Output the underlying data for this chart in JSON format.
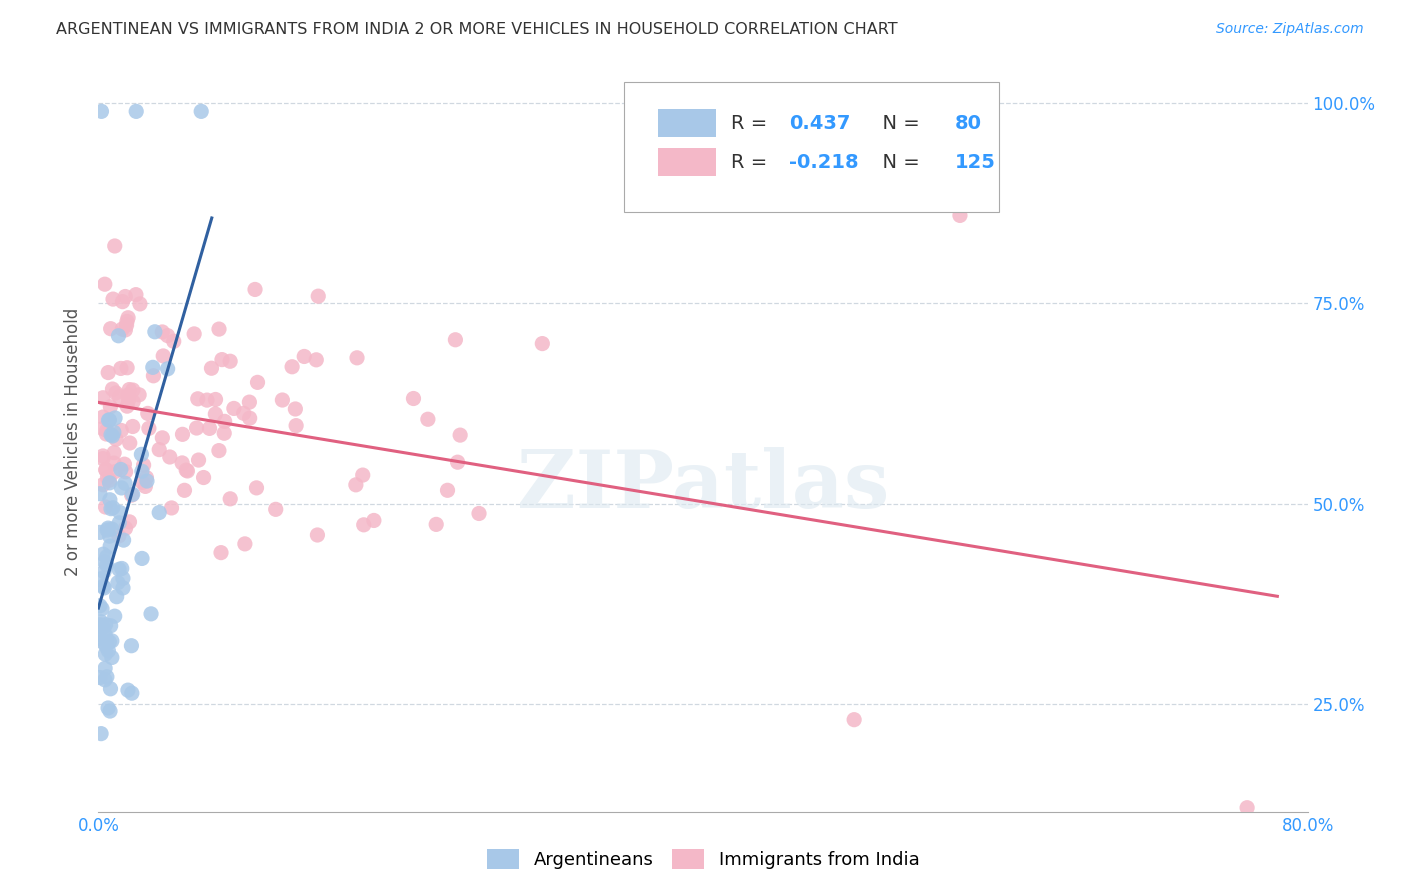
{
  "title": "ARGENTINEAN VS IMMIGRANTS FROM INDIA 2 OR MORE VEHICLES IN HOUSEHOLD CORRELATION CHART",
  "source": "Source: ZipAtlas.com",
  "ylabel_label": "2 or more Vehicles in Household",
  "legend_labels": [
    "Argentineans",
    "Immigrants from India"
  ],
  "r_blue": 0.437,
  "n_blue": 80,
  "r_pink": -0.218,
  "n_pink": 125,
  "blue_color": "#a8c8e8",
  "pink_color": "#f4b8c8",
  "blue_line_color": "#3060a0",
  "pink_line_color": "#e06080",
  "watermark": "ZIPatlas",
  "xlim": [
    0.0,
    0.8
  ],
  "ylim": [
    0.115,
    1.04
  ],
  "yticks": [
    0.25,
    0.5,
    0.75,
    1.0
  ],
  "ytick_labels": [
    "25.0%",
    "50.0%",
    "75.0%",
    "100.0%"
  ],
  "xticks": [
    0.0,
    0.8
  ],
  "xtick_labels": [
    "0.0%",
    "80.0%"
  ]
}
